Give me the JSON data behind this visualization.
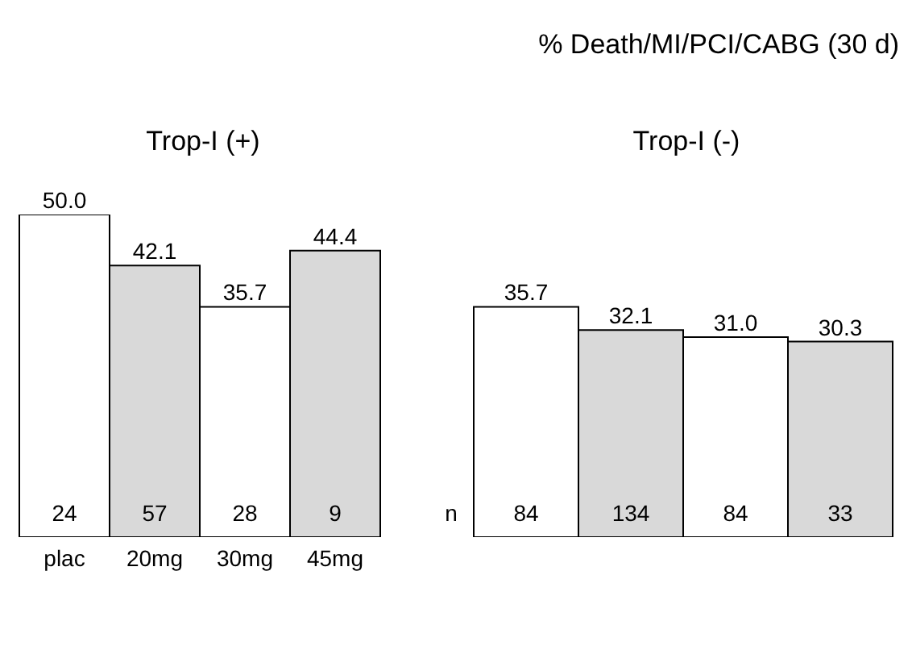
{
  "chart_data": [
    {
      "type": "bar",
      "subtitle": "Trop-I (+)",
      "categories": [
        "plac",
        "20mg",
        "30mg",
        "45mg"
      ],
      "values": [
        50.0,
        42.1,
        35.7,
        44.4
      ],
      "value_labels": [
        "50.0",
        "42.1",
        "35.7",
        "44.4"
      ],
      "colors": [
        "#ffffff",
        "#d9d9d9",
        "#ffffff",
        "#d9d9d9"
      ],
      "annotations": [
        "24",
        "57",
        "28",
        "9"
      ]
    },
    {
      "type": "bar",
      "title": "% Death/MI/PCI/CABG (30 d)",
      "subtitle": "Trop-I (-)",
      "ylabel": "n",
      "categories": [
        null,
        null,
        null,
        null
      ],
      "values": [
        35.7,
        32.1,
        31.0,
        30.3
      ],
      "value_labels": [
        "35.7",
        "32.1",
        "31.0",
        "30.3"
      ],
      "colors": [
        "#ffffff",
        "#d9d9d9",
        "#ffffff",
        "#d9d9d9"
      ],
      "annotations": [
        "84",
        "134",
        "84",
        "33"
      ]
    }
  ]
}
